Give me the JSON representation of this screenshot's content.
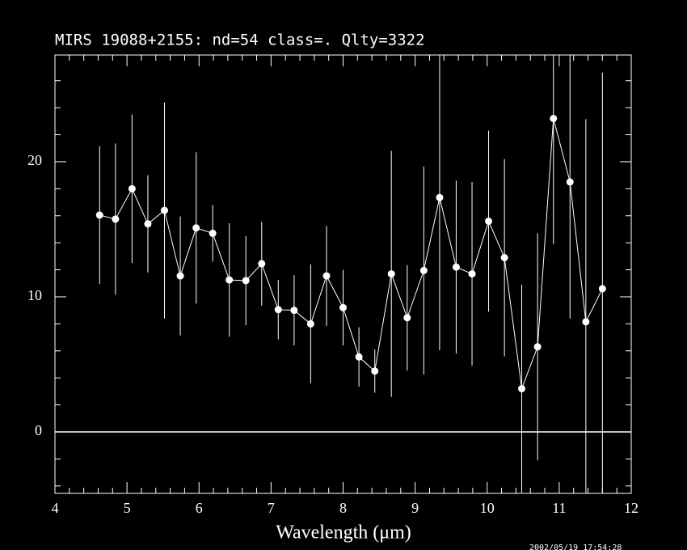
{
  "chart_data": {
    "type": "scatter",
    "title": "MIRS 19088+2155:    nd=54   class=.   Qlty=3322",
    "x_label": "Wavelength (μm)",
    "timestamp": "2002/05/19 17:54:28",
    "background": "#000000",
    "color": "#ffffff",
    "connect": true,
    "x": [
      4.62,
      4.84,
      5.07,
      5.29,
      5.52,
      5.74,
      5.96,
      6.19,
      6.42,
      6.65,
      6.87,
      7.1,
      7.32,
      7.55,
      7.77,
      8.0,
      8.22,
      8.44,
      8.67,
      8.89,
      9.12,
      9.34,
      9.57,
      9.79,
      10.02,
      10.24,
      10.48,
      10.7,
      10.92,
      11.15,
      11.37,
      11.6
    ],
    "values": [
      16.05,
      15.75,
      18.0,
      15.4,
      16.4,
      11.55,
      15.1,
      14.7,
      11.25,
      11.2,
      12.45,
      9.05,
      9.0,
      8.0,
      11.55,
      9.2,
      5.55,
      4.5,
      11.7,
      8.45,
      11.95,
      17.35,
      12.2,
      11.7,
      15.6,
      12.9,
      3.2,
      6.3,
      23.2,
      18.5,
      8.15,
      10.6
    ],
    "errors": [
      5.1,
      5.6,
      5.5,
      3.6,
      8.0,
      4.4,
      5.6,
      2.1,
      4.2,
      3.3,
      3.1,
      2.2,
      2.6,
      4.4,
      3.7,
      2.8,
      2.2,
      1.6,
      9.1,
      3.9,
      7.7,
      11.3,
      6.4,
      6.8,
      6.7,
      7.3,
      7.7,
      8.4,
      9.3,
      10.1,
      15.0,
      16.0
    ],
    "xlim": [
      4,
      12
    ],
    "ylim": [
      -4.55,
      27.9
    ],
    "xticks": [
      4,
      5,
      6,
      7,
      8,
      9,
      10,
      11,
      12
    ],
    "yticks": [
      0,
      10,
      20
    ],
    "xticks_minor": [
      4.2,
      4.4,
      4.6,
      4.8,
      5.2,
      5.4,
      5.6,
      5.8,
      6.2,
      6.4,
      6.6,
      6.8,
      7.2,
      7.4,
      7.6,
      7.8,
      8.2,
      8.4,
      8.6,
      8.8,
      9.2,
      9.4,
      9.6,
      9.8,
      10.2,
      10.4,
      10.6,
      10.8,
      11.2,
      11.4,
      11.6,
      11.8
    ],
    "yticks_minor": [
      -4,
      -2,
      2,
      4,
      6,
      8,
      12,
      14,
      16,
      18,
      22,
      24,
      26
    ],
    "hline": 0
  }
}
